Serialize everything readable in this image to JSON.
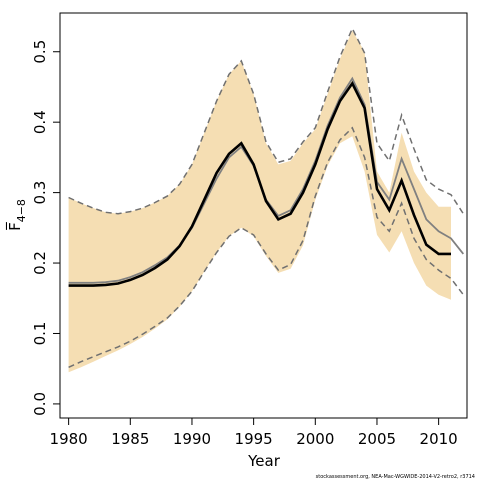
{
  "chart_data": {
    "type": "line",
    "xlabel": "Year",
    "ylabel": "F̅",
    "ylabel_subscript": "4−8",
    "footer": "stockassessment.org, NEA-Mac-WGWIDE-2014-V2-retro2, r3714",
    "xlim": [
      1979.3,
      2012.3
    ],
    "ylim": [
      -0.02,
      0.555
    ],
    "x_ticks": [
      1980,
      1985,
      1990,
      1995,
      2000,
      2005,
      2010
    ],
    "x_tick_labels": [
      "1980",
      "1985",
      "1990",
      "1995",
      "2000",
      "2005",
      "2010"
    ],
    "y_ticks": [
      0.0,
      0.1,
      0.2,
      0.3,
      0.4,
      0.5
    ],
    "y_tick_labels": [
      "0.0",
      "0.1",
      "0.2",
      "0.3",
      "0.4",
      "0.5"
    ],
    "colors": {
      "band": "#f5deb3",
      "current": "#000000",
      "previous": "#808080",
      "previous_ci": "#707070"
    },
    "series": [
      {
        "role": "confidence-band",
        "x": [
          1980,
          1981,
          1982,
          1983,
          1984,
          1985,
          1986,
          1987,
          1988,
          1989,
          1990,
          1991,
          1992,
          1993,
          1994,
          1995,
          1996,
          1997,
          1998,
          1999,
          2000,
          2001,
          2002,
          2003,
          2004,
          2005,
          2006,
          2007,
          2008,
          2009,
          2010,
          2011
        ],
        "lower": [
          0.045,
          0.052,
          0.06,
          0.068,
          0.076,
          0.085,
          0.095,
          0.107,
          0.12,
          0.138,
          0.16,
          0.188,
          0.215,
          0.238,
          0.25,
          0.238,
          0.21,
          0.186,
          0.192,
          0.225,
          0.29,
          0.338,
          0.37,
          0.38,
          0.33,
          0.24,
          0.215,
          0.245,
          0.2,
          0.168,
          0.155,
          0.148
        ],
        "upper": [
          0.293,
          0.285,
          0.278,
          0.272,
          0.27,
          0.273,
          0.278,
          0.286,
          0.295,
          0.312,
          0.34,
          0.385,
          0.43,
          0.468,
          0.487,
          0.44,
          0.37,
          0.34,
          0.345,
          0.37,
          0.39,
          0.44,
          0.49,
          0.53,
          0.5,
          0.33,
          0.3,
          0.385,
          0.33,
          0.3,
          0.28,
          0.28
        ]
      },
      {
        "role": "estimate",
        "x": [
          1980,
          1981,
          1982,
          1983,
          1984,
          1985,
          1986,
          1987,
          1988,
          1989,
          1990,
          1991,
          1992,
          1993,
          1994,
          1995,
          1996,
          1997,
          1998,
          1999,
          2000,
          2001,
          2002,
          2003,
          2004,
          2005,
          2006,
          2007,
          2008,
          2009,
          2010,
          2011
        ],
        "values": [
          0.168,
          0.168,
          0.168,
          0.169,
          0.171,
          0.176,
          0.183,
          0.193,
          0.205,
          0.224,
          0.252,
          0.29,
          0.328,
          0.355,
          0.37,
          0.34,
          0.288,
          0.262,
          0.27,
          0.3,
          0.34,
          0.39,
          0.43,
          0.455,
          0.42,
          0.305,
          0.275,
          0.317,
          0.268,
          0.226,
          0.213,
          0.213
        ]
      },
      {
        "role": "previous-estimate",
        "x": [
          1980,
          1981,
          1982,
          1983,
          1984,
          1985,
          1986,
          1987,
          1988,
          1989,
          1990,
          1991,
          1992,
          1993,
          1994,
          1995,
          1996,
          1997,
          1998,
          1999,
          2000,
          2001,
          2002,
          2003,
          2004,
          2005,
          2006,
          2007,
          2008,
          2009,
          2010,
          2011,
          2012
        ],
        "values": [
          0.172,
          0.172,
          0.172,
          0.173,
          0.175,
          0.18,
          0.187,
          0.197,
          0.208,
          0.225,
          0.25,
          0.285,
          0.32,
          0.35,
          0.365,
          0.338,
          0.29,
          0.267,
          0.275,
          0.305,
          0.345,
          0.395,
          0.435,
          0.462,
          0.425,
          0.315,
          0.29,
          0.348,
          0.305,
          0.262,
          0.245,
          0.235,
          0.213
        ]
      },
      {
        "role": "previous-upper",
        "x": [
          1980,
          1981,
          1982,
          1983,
          1984,
          1985,
          1986,
          1987,
          1988,
          1989,
          1990,
          1991,
          1992,
          1993,
          1994,
          1995,
          1996,
          1997,
          1998,
          1999,
          2000,
          2001,
          2002,
          2003,
          2004,
          2005,
          2006,
          2007,
          2008,
          2009,
          2010,
          2011,
          2012
        ],
        "values": [
          0.293,
          0.285,
          0.278,
          0.272,
          0.27,
          0.273,
          0.278,
          0.286,
          0.295,
          0.312,
          0.34,
          0.385,
          0.43,
          0.468,
          0.487,
          0.44,
          0.372,
          0.343,
          0.348,
          0.372,
          0.392,
          0.443,
          0.493,
          0.533,
          0.498,
          0.37,
          0.345,
          0.41,
          0.362,
          0.318,
          0.305,
          0.297,
          0.27
        ]
      },
      {
        "role": "previous-lower",
        "x": [
          1980,
          1981,
          1982,
          1983,
          1984,
          1985,
          1986,
          1987,
          1988,
          1989,
          1990,
          1991,
          1992,
          1993,
          1994,
          1995,
          1996,
          1997,
          1998,
          1999,
          2000,
          2001,
          2002,
          2003,
          2004,
          2005,
          2006,
          2007,
          2008,
          2009,
          2010,
          2011,
          2012
        ],
        "values": [
          0.052,
          0.06,
          0.067,
          0.074,
          0.081,
          0.089,
          0.099,
          0.11,
          0.122,
          0.139,
          0.16,
          0.188,
          0.215,
          0.238,
          0.25,
          0.24,
          0.213,
          0.19,
          0.198,
          0.232,
          0.295,
          0.343,
          0.375,
          0.392,
          0.35,
          0.265,
          0.245,
          0.285,
          0.235,
          0.205,
          0.19,
          0.178,
          0.155
        ]
      }
    ]
  }
}
